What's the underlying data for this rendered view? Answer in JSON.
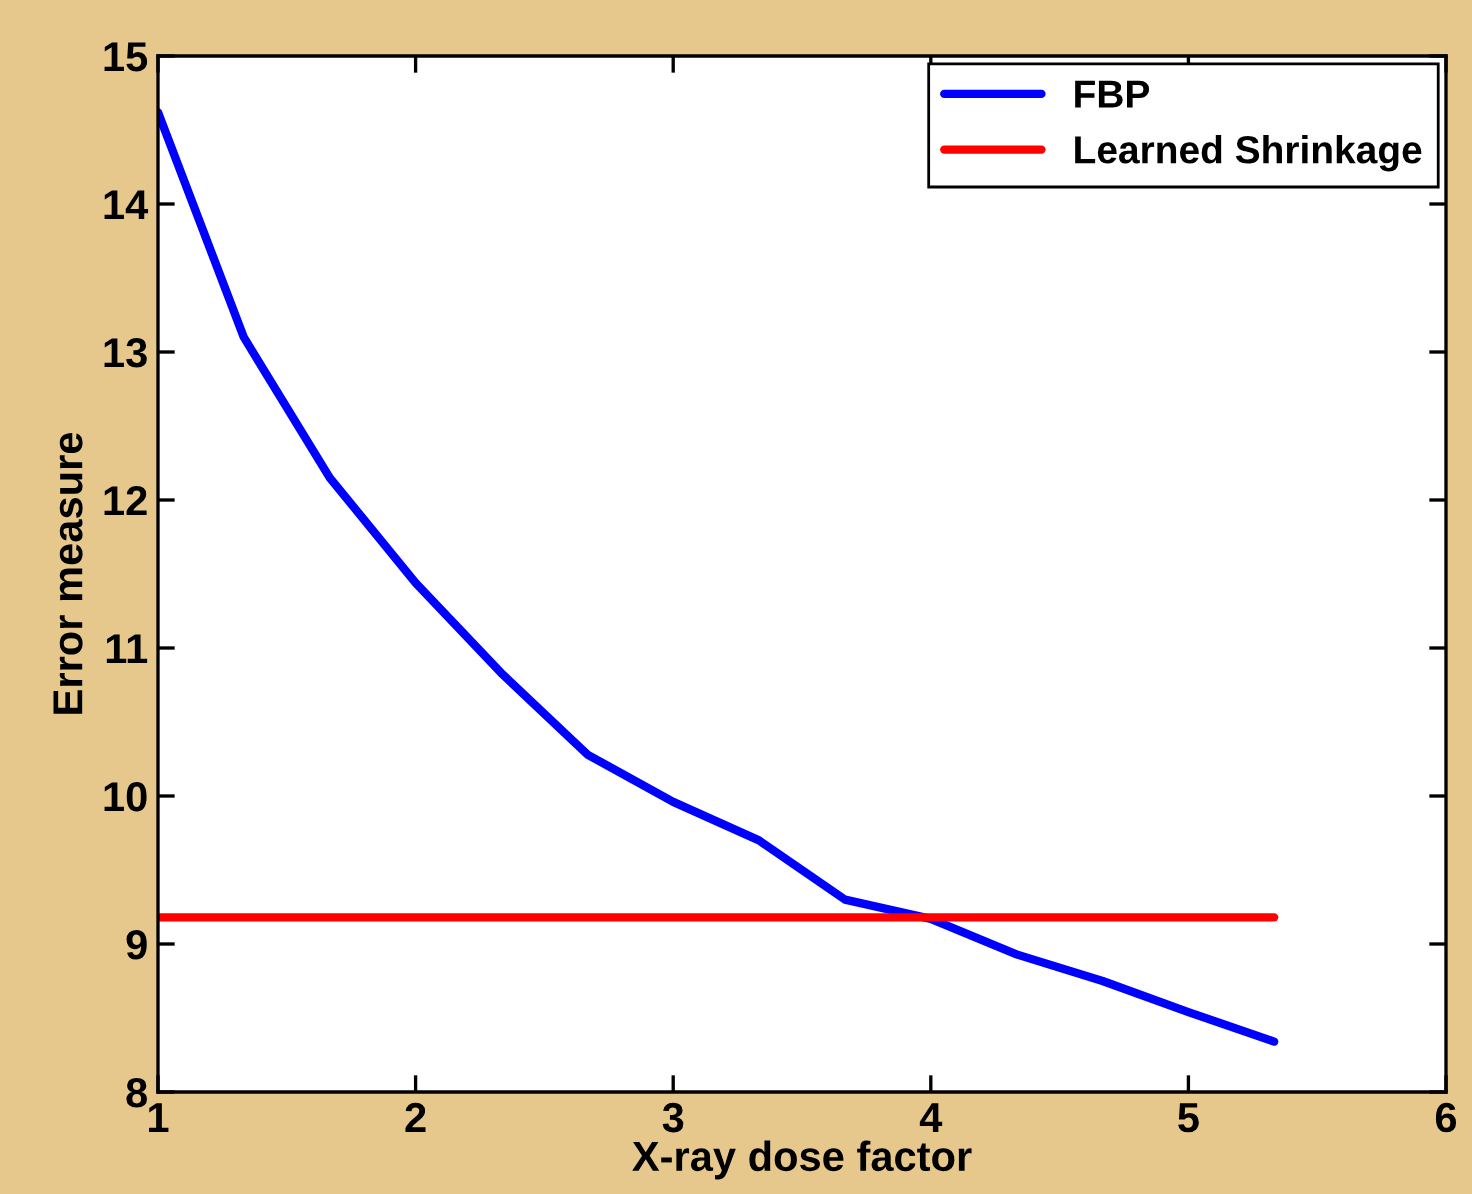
{
  "chart_data": {
    "type": "line",
    "xlabel": "X-ray dose factor",
    "ylabel": "Error measure",
    "xlim": [
      1,
      6
    ],
    "xticks": [
      1,
      2,
      3,
      4,
      5,
      6
    ],
    "ylim": [
      8,
      15
    ],
    "yticks": [
      8,
      9,
      10,
      11,
      12,
      13,
      14,
      15
    ],
    "grid": false,
    "legend": "top right",
    "line_style": "solid",
    "marker": "none",
    "series": [
      {
        "name": "FBP",
        "color": "#0000ff",
        "x": [
          1,
          1.333,
          1.667,
          2,
          2.333,
          2.667,
          3,
          3.333,
          3.667,
          4,
          4.333,
          4.667,
          5,
          5.333
        ],
        "values": [
          14.62,
          13.1,
          12.15,
          11.44,
          10.83,
          10.28,
          9.96,
          9.7,
          9.3,
          9.17,
          8.93,
          8.75,
          8.54,
          8.34
        ]
      },
      {
        "name": "Learned Shrinkage",
        "color": "#ff0000",
        "x": [
          1,
          5.333
        ],
        "values": [
          9.18,
          9.18
        ]
      }
    ]
  }
}
